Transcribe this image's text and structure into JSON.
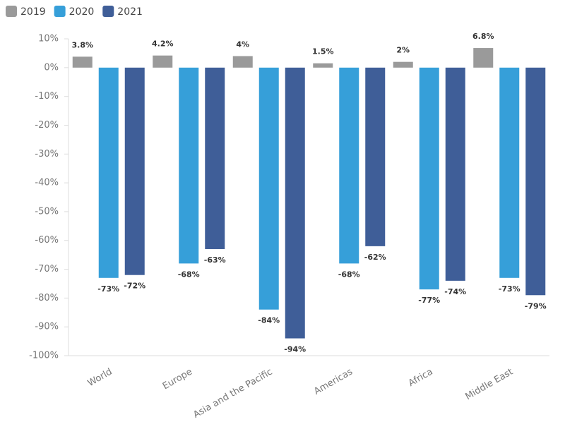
{
  "chart_data": {
    "type": "bar",
    "categories": [
      "World",
      "Europe",
      "Asia and the Pacific",
      "Americas",
      "Africa",
      "Middle East"
    ],
    "series": [
      {
        "name": "2019",
        "color": "#9a9a9a",
        "values": [
          3.8,
          4.2,
          4,
          1.5,
          2,
          6.8
        ],
        "value_labels": [
          "3.8%",
          "4.2%",
          "4%",
          "1.5%",
          "2%",
          "6.8%"
        ]
      },
      {
        "name": "2020",
        "color": "#369fd9",
        "values": [
          -73,
          -68,
          -84,
          -68,
          -77,
          -73
        ],
        "value_labels": [
          "-73%",
          "-68%",
          "-84%",
          "-68%",
          "-77%",
          "-73%"
        ]
      },
      {
        "name": "2021",
        "color": "#3f5e98",
        "values": [
          -72,
          -63,
          -94,
          -62,
          -74,
          -79
        ],
        "value_labels": [
          "-72%",
          "-63%",
          "-94%",
          "-62%",
          "-74%",
          "-79%"
        ]
      }
    ],
    "ylim": [
      -100,
      10
    ],
    "yticks": [
      {
        "value": 10,
        "label": "10%"
      },
      {
        "value": 0,
        "label": "0%"
      },
      {
        "value": -10,
        "label": "-10%"
      },
      {
        "value": -20,
        "label": "-20%"
      },
      {
        "value": -30,
        "label": "-30%"
      },
      {
        "value": -40,
        "label": "-40%"
      },
      {
        "value": -50,
        "label": "-50%"
      },
      {
        "value": -60,
        "label": "-60%"
      },
      {
        "value": -70,
        "label": "-70%"
      },
      {
        "value": -80,
        "label": "-80%"
      },
      {
        "value": -90,
        "label": "-90%"
      },
      {
        "value": -100,
        "label": "-100%"
      }
    ],
    "legend": "top-left",
    "grid": false
  }
}
